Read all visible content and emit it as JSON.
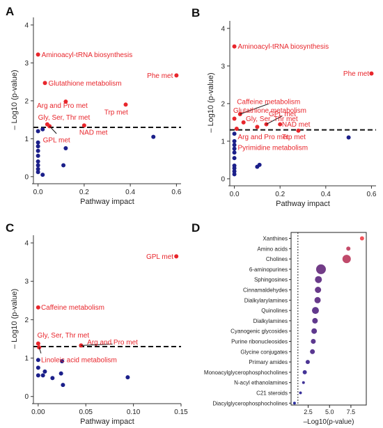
{
  "chart_data": [
    {
      "panel": "A",
      "type": "scatter",
      "xlabel": "Pathway impact",
      "ylabel": "– Log10 (p-value)",
      "xlim": [
        -0.02,
        0.62
      ],
      "ylim": [
        -0.15,
        4.2
      ],
      "xticks": [
        "0.0",
        "0.2",
        "0.4",
        "0.6"
      ],
      "yticks": [
        "0",
        "1",
        "2",
        "3",
        "4"
      ],
      "threshold": 1.3,
      "colors": {
        "significant": "#e8262c",
        "nonsignificant": "#1b1f8a"
      },
      "points": [
        {
          "x": 0.0,
          "y": 3.22,
          "sig": true
        },
        {
          "x": 0.03,
          "y": 2.47,
          "sig": true
        },
        {
          "x": 0.6,
          "y": 2.67,
          "sig": true
        },
        {
          "x": 0.12,
          "y": 1.98,
          "sig": true
        },
        {
          "x": 0.38,
          "y": 1.9,
          "sig": true
        },
        {
          "x": 0.04,
          "y": 1.38,
          "sig": true
        },
        {
          "x": 0.05,
          "y": 1.33,
          "sig": true
        },
        {
          "x": 0.2,
          "y": 1.35,
          "sig": true
        },
        {
          "x": 0.0,
          "y": 1.2,
          "sig": false
        },
        {
          "x": 0.02,
          "y": 1.25,
          "sig": false
        },
        {
          "x": 0.0,
          "y": 0.9,
          "sig": false
        },
        {
          "x": 0.0,
          "y": 0.8,
          "sig": false
        },
        {
          "x": 0.0,
          "y": 0.68,
          "sig": false
        },
        {
          "x": 0.0,
          "y": 0.55,
          "sig": false
        },
        {
          "x": 0.0,
          "y": 0.4,
          "sig": false
        },
        {
          "x": 0.0,
          "y": 0.3,
          "sig": false
        },
        {
          "x": 0.0,
          "y": 0.2,
          "sig": false
        },
        {
          "x": 0.0,
          "y": 0.12,
          "sig": false
        },
        {
          "x": 0.02,
          "y": 0.05,
          "sig": false
        },
        {
          "x": 0.12,
          "y": 0.75,
          "sig": false
        },
        {
          "x": 0.11,
          "y": 0.3,
          "sig": false
        },
        {
          "x": 0.5,
          "y": 1.05,
          "sig": false
        }
      ],
      "annotations": [
        {
          "text": "Aminoacyl-tRNA biosynthesis",
          "x": 0.0,
          "y": 3.22,
          "lx": 0.015,
          "ly": 3.22,
          "anchor": "start"
        },
        {
          "text": "Glutathione metabolism",
          "x": 0.03,
          "y": 2.47,
          "lx": 0.045,
          "ly": 2.47,
          "anchor": "start"
        },
        {
          "text": "Phe met",
          "x": 0.6,
          "y": 2.67,
          "lx": 0.585,
          "ly": 2.67,
          "anchor": "end"
        },
        {
          "text": "Arg and Pro met",
          "x": 0.12,
          "y": 1.98,
          "lx": -0.005,
          "ly": 1.88,
          "anchor": "start"
        },
        {
          "text": "Trp met",
          "x": 0.38,
          "y": 1.9,
          "lx": 0.39,
          "ly": 1.7,
          "anchor": "end"
        },
        {
          "text": "Gly, Ser, Thr met",
          "x": 0.04,
          "y": 1.38,
          "lx": 0.0,
          "ly": 1.57,
          "anchor": "start"
        },
        {
          "text": "NAD met",
          "x": 0.2,
          "y": 1.35,
          "lx": 0.24,
          "ly": 1.17,
          "anchor": "middle"
        },
        {
          "text": "GPL met",
          "x": 0.05,
          "y": 1.33,
          "lx": 0.08,
          "ly": 0.97,
          "anchor": "middle",
          "leader": true
        }
      ]
    },
    {
      "panel": "B",
      "type": "scatter",
      "xlabel": "Pathway impact",
      "ylabel": "– Log10 (p-value)",
      "xlim": [
        -0.02,
        0.62
      ],
      "ylim": [
        -0.15,
        4.2
      ],
      "xticks": [
        "0.0",
        "0.2",
        "0.4",
        "0.6"
      ],
      "yticks": [
        "0",
        "1",
        "2",
        "3",
        "4"
      ],
      "threshold": 1.3,
      "colors": {
        "significant": "#e8262c",
        "nonsignificant": "#1b1f8a"
      },
      "points": [
        {
          "x": 0.0,
          "y": 3.52,
          "sig": true
        },
        {
          "x": 0.6,
          "y": 2.8,
          "sig": true
        },
        {
          "x": 0.0,
          "y": 1.6,
          "sig": true
        },
        {
          "x": 0.025,
          "y": 1.72,
          "sig": true
        },
        {
          "x": 0.04,
          "y": 1.5,
          "sig": true
        },
        {
          "x": 0.1,
          "y": 1.38,
          "sig": true
        },
        {
          "x": 0.14,
          "y": 1.45,
          "sig": true
        },
        {
          "x": 0.2,
          "y": 1.45,
          "sig": true
        },
        {
          "x": 0.28,
          "y": 1.28,
          "sig": true
        },
        {
          "x": 0.01,
          "y": 1.33,
          "sig": true
        },
        {
          "x": 0.0,
          "y": 1.2,
          "sig": false
        },
        {
          "x": 0.0,
          "y": 1.0,
          "sig": false
        },
        {
          "x": 0.0,
          "y": 0.9,
          "sig": false
        },
        {
          "x": 0.0,
          "y": 0.8,
          "sig": false
        },
        {
          "x": 0.0,
          "y": 0.7,
          "sig": false
        },
        {
          "x": 0.0,
          "y": 0.55,
          "sig": false
        },
        {
          "x": 0.0,
          "y": 0.35,
          "sig": false
        },
        {
          "x": 0.0,
          "y": 0.28,
          "sig": false
        },
        {
          "x": 0.0,
          "y": 0.2,
          "sig": false
        },
        {
          "x": 0.0,
          "y": 0.12,
          "sig": false
        },
        {
          "x": 0.1,
          "y": 0.32,
          "sig": false
        },
        {
          "x": 0.11,
          "y": 0.37,
          "sig": false
        },
        {
          "x": 0.5,
          "y": 1.1,
          "sig": false
        }
      ],
      "annotations": [
        {
          "text": "Aminoacyl-tRNA biosynthesis",
          "x": 0.0,
          "y": 3.52,
          "lx": 0.015,
          "ly": 3.52,
          "anchor": "start"
        },
        {
          "text": "Phe met",
          "x": 0.6,
          "y": 2.8,
          "lx": 0.59,
          "ly": 2.8,
          "anchor": "end"
        },
        {
          "text": "Caffeine metabolism",
          "x": 0.025,
          "y": 1.72,
          "lx": 0.15,
          "ly": 2.05,
          "anchor": "middle",
          "leader": true
        },
        {
          "text": "Glutathione metabolism",
          "x": 0.0,
          "y": 1.6,
          "lx": -0.005,
          "ly": 1.82,
          "anchor": "start"
        },
        {
          "text": "GPL met",
          "x": 0.14,
          "y": 1.45,
          "lx": 0.21,
          "ly": 1.73,
          "anchor": "middle",
          "leader": true
        },
        {
          "text": "Gly, Ser, Thr met",
          "x": 0.04,
          "y": 1.5,
          "lx": 0.05,
          "ly": 1.6,
          "anchor": "start"
        },
        {
          "text": "NAD met",
          "x": 0.2,
          "y": 1.45,
          "lx": 0.27,
          "ly": 1.45,
          "anchor": "middle"
        },
        {
          "text": "Trp met",
          "x": 0.28,
          "y": 1.28,
          "lx": 0.26,
          "ly": 1.12,
          "anchor": "middle"
        },
        {
          "text": "Arg and Pro met",
          "x": 0.01,
          "y": 1.33,
          "lx": 0.015,
          "ly": 1.12,
          "anchor": "start"
        },
        {
          "text": "Pyrimidine metabolism",
          "x": 0.0,
          "y": 0.9,
          "lx": 0.015,
          "ly": 0.83,
          "anchor": "start"
        }
      ]
    },
    {
      "panel": "C",
      "type": "scatter",
      "xlabel": "Pathway impact",
      "ylabel": "– Log10 (p-value)",
      "xlim": [
        -0.005,
        0.15
      ],
      "ylim": [
        -0.15,
        4.2
      ],
      "xticks": [
        "0.00",
        "0.05",
        "0.10",
        "0.15"
      ],
      "yticks": [
        "0",
        "1",
        "2",
        "3",
        "4"
      ],
      "threshold": 1.3,
      "colors": {
        "significant": "#e8262c",
        "nonsignificant": "#1b1f8a"
      },
      "points": [
        {
          "x": 0.145,
          "y": 3.65,
          "sig": true
        },
        {
          "x": 0.0,
          "y": 2.32,
          "sig": true
        },
        {
          "x": 0.0,
          "y": 1.38,
          "sig": true
        },
        {
          "x": 0.001,
          "y": 1.28,
          "sig": true
        },
        {
          "x": 0.045,
          "y": 1.33,
          "sig": true
        },
        {
          "x": 0.0,
          "y": 0.95,
          "sig": false
        },
        {
          "x": 0.0,
          "y": 0.75,
          "sig": false
        },
        {
          "x": 0.0,
          "y": 0.55,
          "sig": false
        },
        {
          "x": 0.005,
          "y": 0.55,
          "sig": false
        },
        {
          "x": 0.007,
          "y": 0.65,
          "sig": false
        },
        {
          "x": 0.015,
          "y": 0.48,
          "sig": false
        },
        {
          "x": 0.024,
          "y": 0.6,
          "sig": false
        },
        {
          "x": 0.025,
          "y": 0.92,
          "sig": false
        },
        {
          "x": 0.026,
          "y": 0.3,
          "sig": false
        },
        {
          "x": 0.094,
          "y": 0.5,
          "sig": false
        }
      ],
      "annotations": [
        {
          "text": "GPL met",
          "x": 0.145,
          "y": 3.65,
          "lx": 0.142,
          "ly": 3.65,
          "anchor": "end"
        },
        {
          "text": "Caffeine metabolism",
          "x": 0.0,
          "y": 2.32,
          "lx": 0.003,
          "ly": 2.32,
          "anchor": "start"
        },
        {
          "text": "Gly, Ser, Thr met",
          "x": 0.0,
          "y": 1.38,
          "lx": -0.001,
          "ly": 1.6,
          "anchor": "start"
        },
        {
          "text": "Arg and Pro met",
          "x": 0.045,
          "y": 1.33,
          "lx": 0.078,
          "ly": 1.42,
          "anchor": "middle",
          "leader": true
        },
        {
          "text": "Linoleic acid metabolism",
          "x": 0.001,
          "y": 1.28,
          "lx": 0.003,
          "ly": 0.96,
          "anchor": "start",
          "leader": true
        }
      ]
    },
    {
      "panel": "D",
      "type": "scatter",
      "xlabel": "–Log10(p-value)",
      "xlim": [
        0.5,
        9.3
      ],
      "xticks": [
        "2.5",
        "5.0",
        "7.5"
      ],
      "threshold": 1.3,
      "colors": {
        "high": "#f1535a",
        "low": "#2b2fa0"
      },
      "categories": [
        "Xanthines",
        "Amino acids",
        "Cholines",
        "6-aminopurines",
        "Sphingosines",
        "Cinnamaldehydes",
        "Dialkylarylamines",
        "Quinolines",
        "Dialkylamines",
        "Cyanogenic glycosides",
        "Purine ribonucleosides",
        "Glycine conjugates",
        "Primary amides",
        "Monoacylglycerophosphocholines",
        "N-acyl ethanolamines",
        "C21 steroids",
        "Diacylglycerophosphocholines"
      ],
      "values": [
        8.8,
        7.2,
        7.0,
        4.0,
        3.7,
        3.65,
        3.6,
        3.35,
        3.3,
        3.2,
        3.1,
        3.0,
        2.45,
        2.1,
        1.95,
        1.6,
        0.9
      ],
      "sizes": [
        3,
        3,
        6,
        7,
        5,
        4.5,
        4.5,
        5,
        4,
        4,
        3.5,
        3.5,
        3,
        3,
        2,
        2,
        2
      ]
    }
  ]
}
